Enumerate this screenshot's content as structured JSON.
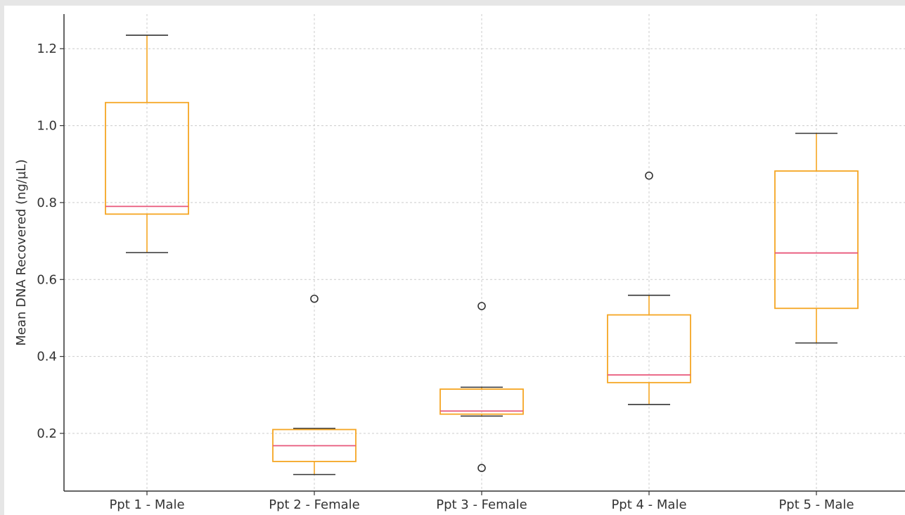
{
  "chart_data": {
    "type": "box",
    "ylabel": "Mean DNA Recovered (ng/µL)",
    "xlabel": "",
    "title": "",
    "ylim": [
      0.05,
      1.29
    ],
    "yticks": [
      "0.2",
      "0.4",
      "0.6",
      "0.8",
      "1.0",
      "1.2"
    ],
    "grid": true,
    "colors": {
      "box": "#f5a623",
      "median": "#e8577a",
      "whisker": "#f5a623",
      "cap": "#333333",
      "outlier": "#333333",
      "grid": "#cccccc",
      "axis": "#333333"
    },
    "categories": [
      "Ppt 1 - Male",
      "Ppt 2 - Female",
      "Ppt 3 - Female",
      "Ppt 4 - Male",
      "Ppt 5 - Male"
    ],
    "boxes": [
      {
        "label": "Ppt 1 - Male",
        "whislo": 0.67,
        "q1": 0.77,
        "med": 0.79,
        "q3": 1.06,
        "whishi": 1.235,
        "fliers": []
      },
      {
        "label": "Ppt 2 - Female",
        "whislo": 0.093,
        "q1": 0.127,
        "med": 0.168,
        "q3": 0.21,
        "whishi": 0.213,
        "fliers": [
          0.55
        ]
      },
      {
        "label": "Ppt 3 - Female",
        "whislo": 0.245,
        "q1": 0.25,
        "med": 0.258,
        "q3": 0.315,
        "whishi": 0.32,
        "fliers": [
          0.531,
          0.11
        ]
      },
      {
        "label": "Ppt 4 - Male",
        "whislo": 0.275,
        "q1": 0.332,
        "med": 0.352,
        "q3": 0.508,
        "whishi": 0.559,
        "fliers": [
          0.87
        ]
      },
      {
        "label": "Ppt 5 - Male",
        "whislo": 0.435,
        "q1": 0.525,
        "med": 0.669,
        "q3": 0.882,
        "whishi": 0.98,
        "fliers": []
      }
    ]
  }
}
